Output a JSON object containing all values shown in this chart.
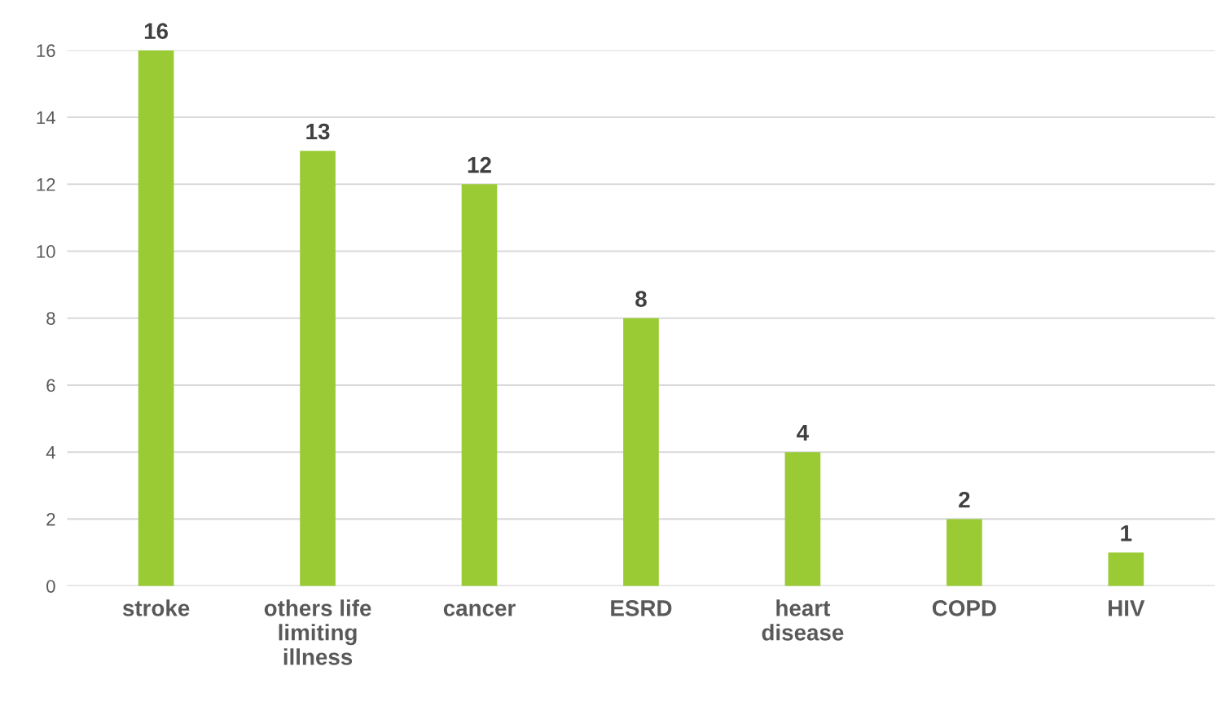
{
  "chart_data": {
    "type": "bar",
    "categories": [
      "stroke",
      "others life\nlimiting\nillness",
      "cancer",
      "ESRD",
      "heart\ndisease",
      "COPD",
      "HIV"
    ],
    "values": [
      16,
      13,
      12,
      8,
      4,
      2,
      1
    ],
    "color": "#9acb34",
    "ylim": [
      0,
      16
    ],
    "yticks": [
      0,
      2,
      4,
      6,
      8,
      10,
      12,
      14,
      16
    ],
    "grid": "y",
    "data_labels": true
  }
}
